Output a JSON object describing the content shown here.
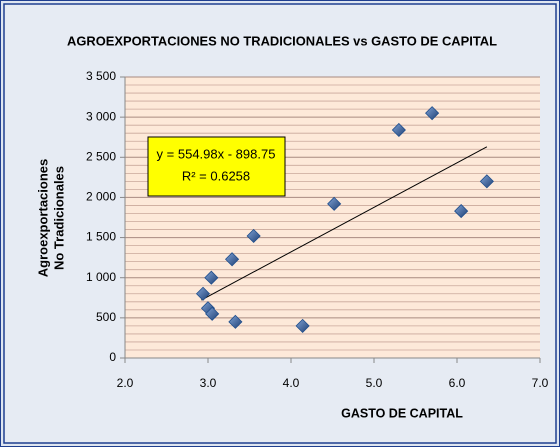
{
  "chart_data": {
    "type": "scatter",
    "title": "AGROEXPORTACIONES NO TRADICIONALES vs GASTO DE CAPITAL",
    "xlabel": "GASTO DE CAPITAL",
    "ylabel": [
      "Agroexportaciones",
      "No Tradicionales"
    ],
    "x": [
      2.94,
      3.0,
      3.05,
      3.04,
      3.29,
      3.33,
      3.55,
      4.14,
      4.52,
      5.3,
      5.7,
      6.05,
      6.36
    ],
    "values": [
      800,
      620,
      550,
      1000,
      1230,
      450,
      1520,
      400,
      1920,
      2840,
      3050,
      1830,
      2200
    ],
    "color": "#1f4e8c",
    "xlim": [
      2.0,
      7.0
    ],
    "xticks": [
      {
        "value": 2,
        "label": "2.0"
      },
      {
        "value": 3,
        "label": "3.0"
      },
      {
        "value": 4,
        "label": "4.0"
      },
      {
        "value": 5,
        "label": "5.0"
      },
      {
        "value": 6,
        "label": "6.0"
      },
      {
        "value": 7,
        "label": "7.0"
      }
    ],
    "ylim": [
      0,
      3500
    ],
    "yticks": [
      0,
      500,
      {
        "value": 1000,
        "label": "1 000"
      },
      {
        "value": 1500,
        "label": "1 500"
      },
      {
        "value": 2000,
        "label": "2 000"
      },
      {
        "value": 2500,
        "label": "2 500"
      },
      {
        "value": 3000,
        "label": "3 000"
      },
      {
        "value": 3500,
        "label": "3 500"
      }
    ],
    "yminorticks": [
      100,
      200,
      300,
      400,
      600,
      700,
      800,
      900,
      1100,
      1200,
      1300,
      1400,
      1600,
      1700,
      1800,
      1900,
      2100,
      2200,
      2300,
      2400,
      2600,
      2700,
      2800,
      2900,
      3100,
      3200,
      3300,
      3400
    ],
    "grid": true,
    "trendline": {
      "x": [
        2.92,
        6.36
      ],
      "values": [
        722,
        2631
      ],
      "color": "#000000"
    },
    "annotation": [
      "y = 554.98x - 898.75",
      "R² = 0.6258"
    ]
  }
}
